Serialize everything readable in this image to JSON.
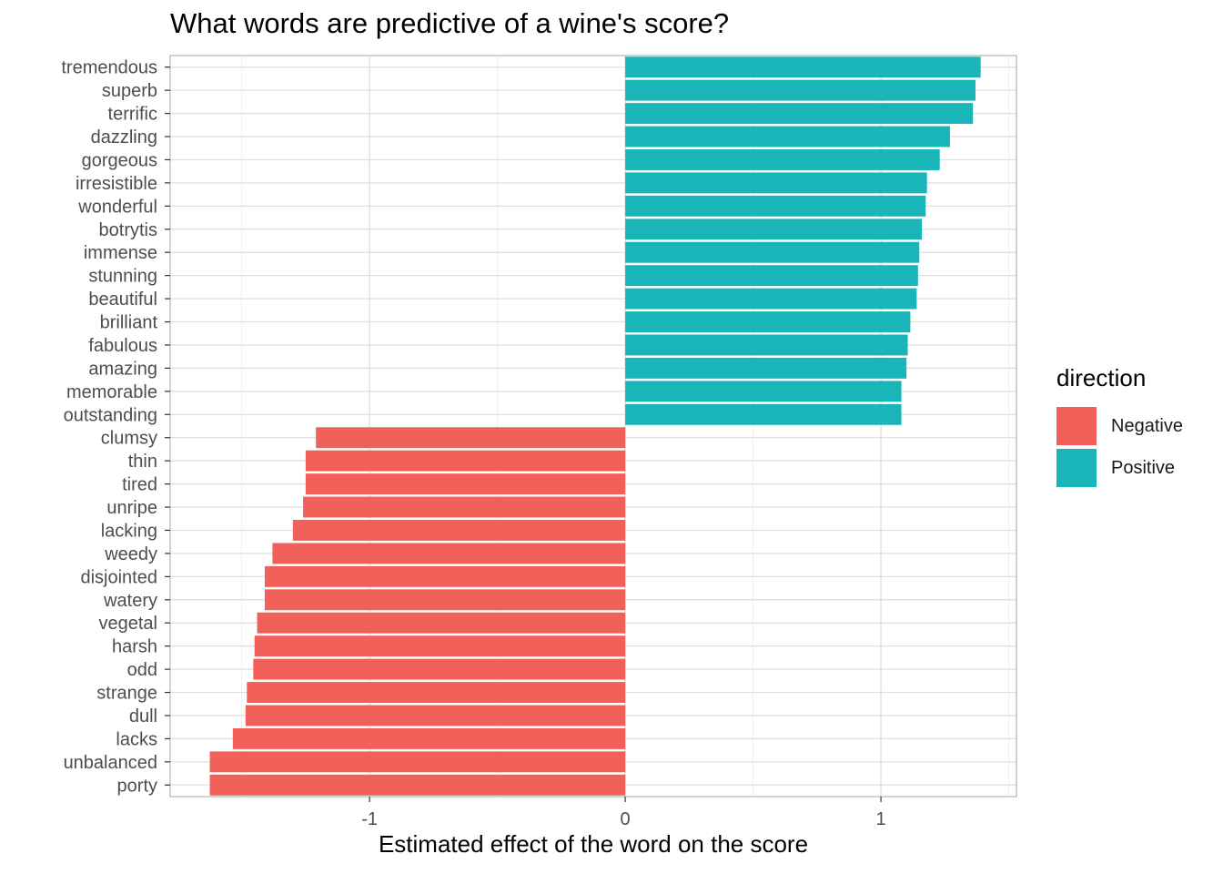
{
  "chart_data": {
    "type": "bar",
    "orientation": "horizontal",
    "title": "What words are predictive of a wine's score?",
    "xlabel": "Estimated effect of the word on the score",
    "ylabel": "",
    "xlim": [
      -1.78,
      1.53
    ],
    "xticks": [
      -1,
      0,
      1
    ],
    "xtick_labels": [
      "-1",
      "0",
      "1"
    ],
    "grid": true,
    "legend": {
      "title": "direction",
      "position": "right",
      "entries": [
        {
          "name": "Negative",
          "color": "#F8766D"
        },
        {
          "name": "Positive",
          "color": "#00BFC4"
        }
      ]
    },
    "colors": {
      "Negative": "#F2605A",
      "Positive": "#19B5B9"
    },
    "categories": [
      "tremendous",
      "superb",
      "terrific",
      "dazzling",
      "gorgeous",
      "irresistible",
      "wonderful",
      "botrytis",
      "immense",
      "stunning",
      "beautiful",
      "brilliant",
      "fabulous",
      "amazing",
      "memorable",
      "outstanding",
      "clumsy",
      "thin",
      "tired",
      "unripe",
      "lacking",
      "weedy",
      "disjointed",
      "watery",
      "vegetal",
      "harsh",
      "odd",
      "strange",
      "dull",
      "lacks",
      "unbalanced",
      "porty"
    ],
    "values": [
      1.39,
      1.37,
      1.36,
      1.27,
      1.23,
      1.18,
      1.175,
      1.16,
      1.15,
      1.145,
      1.14,
      1.115,
      1.105,
      1.1,
      1.08,
      1.08,
      -1.21,
      -1.25,
      -1.25,
      -1.26,
      -1.3,
      -1.38,
      -1.41,
      -1.41,
      -1.44,
      -1.45,
      -1.455,
      -1.48,
      -1.485,
      -1.535,
      -1.625,
      -1.625
    ],
    "directions": [
      "Positive",
      "Positive",
      "Positive",
      "Positive",
      "Positive",
      "Positive",
      "Positive",
      "Positive",
      "Positive",
      "Positive",
      "Positive",
      "Positive",
      "Positive",
      "Positive",
      "Positive",
      "Positive",
      "Negative",
      "Negative",
      "Negative",
      "Negative",
      "Negative",
      "Negative",
      "Negative",
      "Negative",
      "Negative",
      "Negative",
      "Negative",
      "Negative",
      "Negative",
      "Negative",
      "Negative",
      "Negative"
    ]
  }
}
